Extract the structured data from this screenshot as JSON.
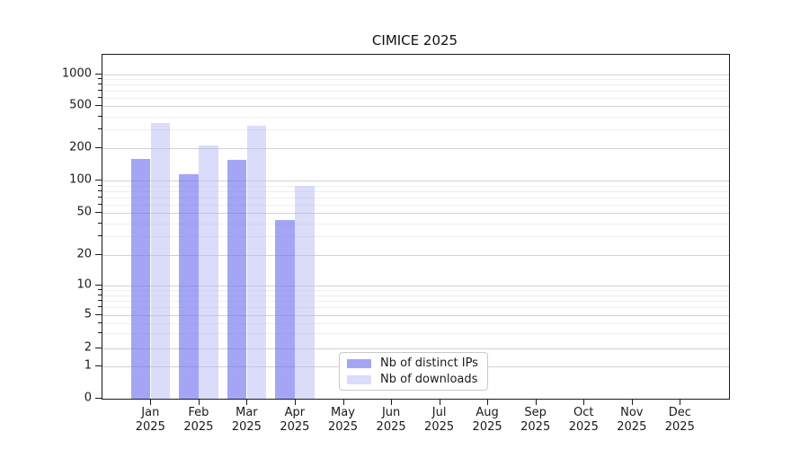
{
  "title": "CIMICE 2025",
  "chart_data": {
    "type": "bar",
    "title": "CIMICE 2025",
    "xlabel": "",
    "ylabel": "",
    "y_axis_type": "symlog",
    "grid": true,
    "legend_position": "inside-bottom-center",
    "categories": [
      "Jan",
      "Feb",
      "Mar",
      "Apr",
      "May",
      "Jun",
      "Jul",
      "Aug",
      "Sep",
      "Oct",
      "Nov",
      "Dec"
    ],
    "year_label": "2025",
    "y_ticks": [
      0,
      1,
      2,
      5,
      10,
      20,
      50,
      100,
      200,
      500,
      1000
    ],
    "ylim": [
      0,
      1400
    ],
    "series": [
      {
        "name": "Nb of distinct IPs",
        "color": "rgba(109,109,240,0.62)",
        "values": [
          160,
          115,
          155,
          43,
          0,
          0,
          0,
          0,
          0,
          0,
          0,
          0
        ]
      },
      {
        "name": "Nb of downloads",
        "color": "rgba(186,186,246,0.52)",
        "values": [
          345,
          215,
          325,
          90,
          0,
          0,
          0,
          0,
          0,
          0,
          0,
          0
        ]
      }
    ]
  }
}
